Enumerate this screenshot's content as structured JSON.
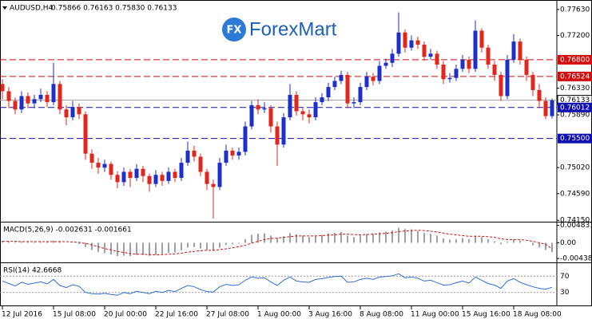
{
  "chart_data": {
    "type": "candlestick",
    "title": "AUDUSD,H4",
    "ohlc_text": "0.75866 0.76163 0.75830 0.76133",
    "logo": {
      "icon": "FX",
      "text": "ForexMart"
    },
    "up_color": "#1c2fc8",
    "down_color": "#e3261c",
    "ylim": [
      0.7414,
      0.7776
    ],
    "yticks": [
      {
        "value": 0.7763,
        "label": "0.77630"
      },
      {
        "value": 0.772,
        "label": "0.77200"
      },
      {
        "value": 0.7633,
        "label": "0.76330"
      },
      {
        "value": 0.7589,
        "label": "0.75890"
      },
      {
        "value": 0.7502,
        "label": "0.75020"
      },
      {
        "value": 0.7459,
        "label": "0.74590"
      },
      {
        "value": 0.7415,
        "label": "0.74150"
      }
    ],
    "levels": [
      {
        "value": 0.768,
        "label": "0.76800",
        "color": "#d01010",
        "style": "dashed"
      },
      {
        "value": 0.76524,
        "label": "0.76524",
        "color": "#d01010",
        "style": "dashed"
      },
      {
        "value": 0.76133,
        "label": "0.76133",
        "color": "#a0a0a0",
        "style": "solid"
      },
      {
        "value": 0.76012,
        "label": "0.76012",
        "color": "#1010b0",
        "style": "dashed"
      },
      {
        "value": 0.755,
        "label": "0.75500",
        "color": "#1010b0",
        "style": "dashed"
      }
    ],
    "categories": [
      "12 Jul 2016",
      null,
      null,
      null,
      null,
      null,
      null,
      null,
      "15 Jul 08:00",
      null,
      null,
      null,
      null,
      null,
      null,
      null,
      "20 Jul 00:00",
      null,
      null,
      null,
      null,
      null,
      null,
      null,
      "22 Jul 16:00",
      null,
      null,
      null,
      null,
      null,
      null,
      null,
      "27 Jul 08:00",
      null,
      null,
      null,
      null,
      null,
      null,
      null,
      "1 Aug 00:00",
      null,
      null,
      null,
      null,
      null,
      null,
      null,
      "3 Aug 16:00",
      null,
      null,
      null,
      null,
      null,
      null,
      null,
      "8 Aug 08:00",
      null,
      null,
      null,
      null,
      null,
      null,
      null,
      "11 Aug 00:00",
      null,
      null,
      null,
      null,
      null,
      null,
      null,
      "15 Aug 16:00",
      null,
      null,
      null,
      null,
      null,
      null,
      null,
      "18 Aug 08:00",
      null,
      null,
      null,
      null,
      null,
      null
    ],
    "candles": [
      [
        0.764,
        0.7648,
        0.7615,
        0.7628
      ],
      [
        0.7628,
        0.7635,
        0.76,
        0.7612
      ],
      [
        0.7612,
        0.7618,
        0.759,
        0.7598
      ],
      [
        0.7598,
        0.7628,
        0.7592,
        0.762
      ],
      [
        0.762,
        0.7626,
        0.76,
        0.7608
      ],
      [
        0.7608,
        0.7622,
        0.76,
        0.7615
      ],
      [
        0.7615,
        0.7632,
        0.761,
        0.7622
      ],
      [
        0.7622,
        0.7628,
        0.7602,
        0.761
      ],
      [
        0.761,
        0.7675,
        0.7605,
        0.764
      ],
      [
        0.764,
        0.7645,
        0.759,
        0.7598
      ],
      [
        0.7598,
        0.7605,
        0.7572,
        0.7585
      ],
      [
        0.7585,
        0.7612,
        0.758,
        0.7602
      ],
      [
        0.7602,
        0.7608,
        0.7582,
        0.759
      ],
      [
        0.759,
        0.7595,
        0.7515,
        0.7525
      ],
      [
        0.7525,
        0.7532,
        0.75,
        0.751
      ],
      [
        0.751,
        0.7518,
        0.7492,
        0.7502
      ],
      [
        0.7502,
        0.7515,
        0.7495,
        0.7508
      ],
      [
        0.7508,
        0.7512,
        0.7482,
        0.749
      ],
      [
        0.749,
        0.7496,
        0.7468,
        0.7478
      ],
      [
        0.7478,
        0.7502,
        0.7472,
        0.7495
      ],
      [
        0.7495,
        0.75,
        0.747,
        0.7485
      ],
      [
        0.7485,
        0.7508,
        0.748,
        0.75
      ],
      [
        0.75,
        0.7505,
        0.7478,
        0.7488
      ],
      [
        0.7488,
        0.7492,
        0.7462,
        0.7475
      ],
      [
        0.7475,
        0.7498,
        0.747,
        0.749
      ],
      [
        0.749,
        0.7495,
        0.7472,
        0.748
      ],
      [
        0.748,
        0.7502,
        0.7475,
        0.7495
      ],
      [
        0.7495,
        0.75,
        0.7478,
        0.7485
      ],
      [
        0.7485,
        0.7518,
        0.748,
        0.751
      ],
      [
        0.751,
        0.7545,
        0.7505,
        0.753
      ],
      [
        0.753,
        0.7538,
        0.7512,
        0.752
      ],
      [
        0.752,
        0.7525,
        0.7488,
        0.7495
      ],
      [
        0.7495,
        0.75,
        0.7465,
        0.7475
      ],
      [
        0.7475,
        0.7482,
        0.7418,
        0.747
      ],
      [
        0.747,
        0.7518,
        0.7465,
        0.751
      ],
      [
        0.751,
        0.754,
        0.7505,
        0.753
      ],
      [
        0.753,
        0.7535,
        0.7515,
        0.7522
      ],
      [
        0.7522,
        0.7535,
        0.7515,
        0.7528
      ],
      [
        0.7528,
        0.7578,
        0.7522,
        0.757
      ],
      [
        0.757,
        0.7612,
        0.7565,
        0.7605
      ],
      [
        0.7605,
        0.7615,
        0.759,
        0.7598
      ],
      [
        0.7598,
        0.761,
        0.7592,
        0.76
      ],
      [
        0.76,
        0.7605,
        0.756,
        0.757
      ],
      [
        0.757,
        0.7578,
        0.7505,
        0.754
      ],
      [
        0.754,
        0.7592,
        0.7535,
        0.7585
      ],
      [
        0.7585,
        0.764,
        0.758,
        0.7622
      ],
      [
        0.7622,
        0.7628,
        0.7588,
        0.7595
      ],
      [
        0.7595,
        0.76,
        0.758,
        0.759
      ],
      [
        0.759,
        0.7598,
        0.7575,
        0.7585
      ],
      [
        0.7585,
        0.7618,
        0.758,
        0.761
      ],
      [
        0.761,
        0.7625,
        0.7605,
        0.7618
      ],
      [
        0.7618,
        0.7642,
        0.7612,
        0.7635
      ],
      [
        0.7635,
        0.7652,
        0.763,
        0.7645
      ],
      [
        0.7645,
        0.7662,
        0.764,
        0.7655
      ],
      [
        0.7655,
        0.766,
        0.76,
        0.7608
      ],
      [
        0.7608,
        0.7618,
        0.76,
        0.761
      ],
      [
        0.761,
        0.7642,
        0.7605,
        0.7635
      ],
      [
        0.7635,
        0.766,
        0.763,
        0.7652
      ],
      [
        0.7652,
        0.7658,
        0.7638,
        0.7645
      ],
      [
        0.7645,
        0.7678,
        0.764,
        0.767
      ],
      [
        0.767,
        0.7682,
        0.7665,
        0.7675
      ],
      [
        0.7675,
        0.7698,
        0.7668,
        0.769
      ],
      [
        0.769,
        0.7758,
        0.7685,
        0.7725
      ],
      [
        0.7725,
        0.773,
        0.7692,
        0.77
      ],
      [
        0.77,
        0.772,
        0.7695,
        0.7712
      ],
      [
        0.7712,
        0.7718,
        0.7698,
        0.7705
      ],
      [
        0.7705,
        0.771,
        0.7678,
        0.7685
      ],
      [
        0.7685,
        0.7698,
        0.768,
        0.769
      ],
      [
        0.769,
        0.7695,
        0.7665,
        0.7672
      ],
      [
        0.7672,
        0.7678,
        0.764,
        0.7648
      ],
      [
        0.7648,
        0.7658,
        0.7642,
        0.765
      ],
      [
        0.765,
        0.7672,
        0.7645,
        0.7665
      ],
      [
        0.7665,
        0.7688,
        0.766,
        0.768
      ],
      [
        0.768,
        0.7685,
        0.7658,
        0.7665
      ],
      [
        0.7665,
        0.7745,
        0.766,
        0.7728
      ],
      [
        0.7728,
        0.7732,
        0.7692,
        0.77
      ],
      [
        0.77,
        0.7705,
        0.7665,
        0.7672
      ],
      [
        0.7672,
        0.7678,
        0.7645,
        0.7655
      ],
      [
        0.7655,
        0.766,
        0.7612,
        0.762
      ],
      [
        0.762,
        0.7688,
        0.7615,
        0.768
      ],
      [
        0.768,
        0.7722,
        0.7675,
        0.771
      ],
      [
        0.771,
        0.7715,
        0.7672,
        0.768
      ],
      [
        0.768,
        0.7685,
        0.7645,
        0.7655
      ],
      [
        0.7655,
        0.766,
        0.762,
        0.763
      ],
      [
        0.763,
        0.764,
        0.76,
        0.7612
      ],
      [
        0.7612,
        0.7618,
        0.7582,
        0.7587
      ],
      [
        0.7587,
        0.7616,
        0.7583,
        0.7613
      ]
    ],
    "macd": {
      "title": "MACD(5,26,9) -0.002631 -0.001661",
      "ylim": [
        -0.0048,
        0.0052
      ],
      "yticks": [
        0.004831,
        {
          "value": 0,
          "label": "0.00"
        },
        -0.004387
      ],
      "hist_color": "#a0a0a0",
      "signal_color": "#d01010",
      "histogram": [
        0.0005,
        0.0004,
        0.0002,
        0.0003,
        0.0002,
        0.0002,
        0.0003,
        0.0002,
        0.0006,
        0.0003,
        0,
        0,
        -0.0003,
        -0.0012,
        -0.002,
        -0.0026,
        -0.0029,
        -0.0033,
        -0.0037,
        -0.0036,
        -0.0037,
        -0.0034,
        -0.0034,
        -0.0036,
        -0.0033,
        -0.0032,
        -0.0028,
        -0.0027,
        -0.0021,
        -0.0013,
        -0.0012,
        -0.0016,
        -0.0021,
        -0.0022,
        -0.0014,
        -0.0006,
        -0.0004,
        -0.0002,
        0.001,
        0.0022,
        0.0025,
        0.0026,
        0.002,
        0.0012,
        0.0018,
        0.0027,
        0.0024,
        0.002,
        0.0016,
        0.002,
        0.0022,
        0.0026,
        0.0028,
        0.003,
        0.002,
        0.0016,
        0.002,
        0.0024,
        0.0024,
        0.0029,
        0.0031,
        0.0034,
        0.0042,
        0.0038,
        0.0037,
        0.0033,
        0.0027,
        0.0025,
        0.002,
        0.0012,
        0.0009,
        0.001,
        0.0013,
        0.001,
        0.002,
        0.0016,
        0.001,
        0.0004,
        -0.0004,
        0.0003,
        0.001,
        0.0006,
        0,
        -0.0007,
        -0.0013,
        -0.002,
        -0.0026
      ],
      "signal": [
        0.0004,
        0.0004,
        0.0004,
        0.0003,
        0.0003,
        0.0003,
        0.0003,
        0.0003,
        0.0003,
        0.0003,
        0.0003,
        0.0002,
        0.0001,
        -0.0002,
        -0.0006,
        -0.0011,
        -0.0016,
        -0.002,
        -0.0024,
        -0.0027,
        -0.003,
        -0.0032,
        -0.0032,
        -0.0033,
        -0.0034,
        -0.0033,
        -0.0032,
        -0.0031,
        -0.0029,
        -0.0026,
        -0.0024,
        -0.0022,
        -0.0021,
        -0.0021,
        -0.0019,
        -0.0017,
        -0.0014,
        -0.0011,
        -0.0007,
        -0.0001,
        0.0004,
        0.0009,
        0.0012,
        0.0013,
        0.0015,
        0.0017,
        0.0019,
        0.0019,
        0.0019,
        0.0019,
        0.002,
        0.0021,
        0.0022,
        0.0024,
        0.0024,
        0.0023,
        0.0022,
        0.0023,
        0.0024,
        0.0025,
        0.0026,
        0.0028,
        0.0031,
        0.0033,
        0.0034,
        0.0035,
        0.0034,
        0.0032,
        0.003,
        0.0027,
        0.0024,
        0.0022,
        0.002,
        0.0018,
        0.0018,
        0.0018,
        0.0017,
        0.0015,
        0.0011,
        0.0009,
        0.0009,
        0.0009,
        0.0007,
        0.0004,
        0,
        -0.0004,
        -0.0017
      ]
    },
    "rsi": {
      "title": "RSI(14) 42.6668",
      "ylim": [
        0,
        100
      ],
      "yticks": [
        70,
        30
      ],
      "color": "#2f6fd6",
      "values": [
        58,
        52,
        46,
        55,
        50,
        53,
        56,
        51,
        62,
        47,
        42,
        49,
        45,
        30,
        27,
        26,
        28,
        25,
        23,
        30,
        27,
        33,
        30,
        27,
        33,
        30,
        35,
        32,
        40,
        47,
        44,
        37,
        32,
        31,
        44,
        50,
        47,
        49,
        60,
        68,
        65,
        66,
        56,
        47,
        60,
        68,
        58,
        56,
        55,
        62,
        64,
        67,
        69,
        70,
        55,
        56,
        62,
        65,
        62,
        68,
        69,
        71,
        76,
        66,
        68,
        65,
        58,
        60,
        54,
        48,
        49,
        54,
        58,
        53,
        68,
        60,
        52,
        48,
        40,
        58,
        64,
        55,
        49,
        44,
        40,
        38,
        42.6668
      ]
    }
  }
}
